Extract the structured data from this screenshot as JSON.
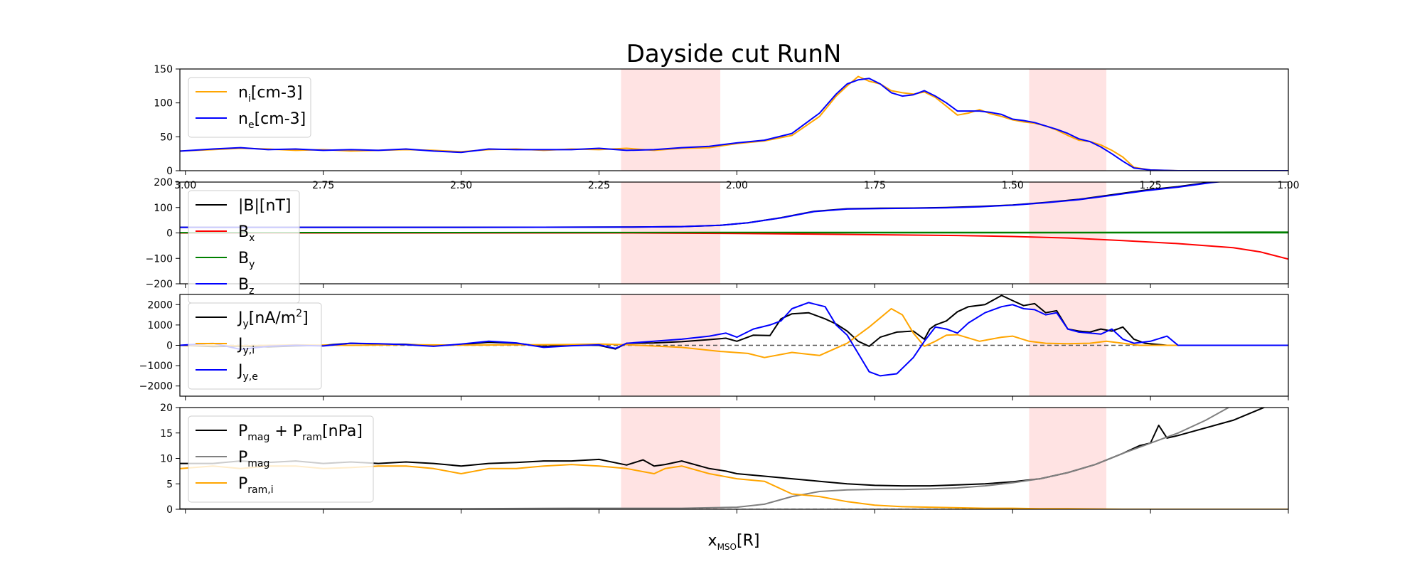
{
  "figure": {
    "title": "Dayside cut RunN",
    "xlabel": "x_MSO[R]"
  },
  "colors": {
    "orange": "#ffa500",
    "blue": "#0000ff",
    "black": "#000000",
    "red": "#ff0000",
    "green": "#008000",
    "gray": "#808080",
    "shade": "#ffc0c0"
  },
  "chart_data": [
    {
      "type": "line",
      "title": "Dayside cut RunN",
      "xlim": [
        3.01,
        1.0
      ],
      "ylim": [
        0,
        150
      ],
      "xticks": [
        "3.00",
        "2.75",
        "2.50",
        "2.25",
        "2.00",
        "1.75",
        "1.50",
        "1.25",
        "1.00"
      ],
      "yticks": [
        "0",
        "50",
        "100",
        "150"
      ],
      "shaded_regions": [
        [
          2.21,
          2.03
        ],
        [
          1.47,
          1.33
        ]
      ],
      "legend": {
        "position": "upper left",
        "entries": [
          "n_i[cm-3]",
          "n_e[cm-3]"
        ]
      },
      "series": [
        {
          "name": "n_i[cm-3]",
          "color": "orange",
          "x": [
            3.01,
            2.95,
            2.9,
            2.85,
            2.8,
            2.75,
            2.7,
            2.65,
            2.6,
            2.55,
            2.5,
            2.45,
            2.4,
            2.35,
            2.3,
            2.25,
            2.2,
            2.15,
            2.1,
            2.05,
            2.0,
            1.95,
            1.9,
            1.85,
            1.82,
            1.8,
            1.78,
            1.76,
            1.74,
            1.72,
            1.7,
            1.68,
            1.66,
            1.64,
            1.62,
            1.6,
            1.58,
            1.56,
            1.54,
            1.52,
            1.5,
            1.48,
            1.46,
            1.44,
            1.42,
            1.4,
            1.38,
            1.36,
            1.34,
            1.32,
            1.3,
            1.28,
            1.25,
            1.2,
            1.1,
            1.0
          ],
          "y": [
            29,
            31,
            33,
            32,
            30,
            31,
            29,
            30,
            31,
            30,
            28,
            31,
            32,
            30,
            32,
            31,
            33,
            30,
            33,
            34,
            40,
            44,
            52,
            80,
            110,
            125,
            139,
            132,
            128,
            118,
            115,
            113,
            116,
            108,
            95,
            82,
            85,
            90,
            84,
            80,
            75,
            72,
            70,
            66,
            60,
            52,
            45,
            43,
            38,
            30,
            20,
            5,
            1,
            0,
            0,
            0
          ]
        },
        {
          "name": "n_e[cm-3]",
          "color": "blue",
          "x": [
            3.01,
            2.95,
            2.9,
            2.85,
            2.8,
            2.75,
            2.7,
            2.65,
            2.6,
            2.55,
            2.5,
            2.45,
            2.4,
            2.35,
            2.3,
            2.25,
            2.2,
            2.15,
            2.1,
            2.05,
            2.0,
            1.95,
            1.9,
            1.85,
            1.82,
            1.8,
            1.78,
            1.76,
            1.74,
            1.72,
            1.7,
            1.68,
            1.66,
            1.64,
            1.62,
            1.6,
            1.58,
            1.56,
            1.54,
            1.52,
            1.5,
            1.48,
            1.46,
            1.44,
            1.42,
            1.4,
            1.38,
            1.36,
            1.34,
            1.32,
            1.3,
            1.28,
            1.25,
            1.2,
            1.1,
            1.0
          ],
          "y": [
            29,
            32,
            34,
            31,
            32,
            30,
            31,
            30,
            32,
            29,
            27,
            32,
            31,
            31,
            31,
            33,
            30,
            31,
            34,
            36,
            41,
            45,
            55,
            85,
            113,
            128,
            134,
            136,
            128,
            115,
            110,
            112,
            118,
            110,
            100,
            88,
            88,
            88,
            86,
            83,
            76,
            74,
            71,
            66,
            61,
            55,
            47,
            43,
            35,
            25,
            14,
            4,
            1,
            0,
            0,
            0
          ]
        }
      ]
    },
    {
      "type": "line",
      "xlim": [
        3.01,
        1.0
      ],
      "ylim": [
        -200,
        200
      ],
      "yticks": [
        "−200",
        "−100",
        "0",
        "100",
        "200"
      ],
      "hline": 0,
      "shaded_regions": [
        [
          2.21,
          2.03
        ],
        [
          1.47,
          1.33
        ]
      ],
      "legend": {
        "position": "upper left",
        "entries": [
          "|B|[nT]",
          "B_x",
          "B_y",
          "B_z"
        ]
      },
      "series": [
        {
          "name": "|B|[nT]",
          "color": "black",
          "x": [
            3.01,
            2.5,
            2.2,
            2.1,
            2.03,
            1.98,
            1.92,
            1.86,
            1.8,
            1.74,
            1.68,
            1.62,
            1.56,
            1.5,
            1.44,
            1.38,
            1.32,
            1.26,
            1.2,
            1.14,
            1.0
          ],
          "y": [
            22,
            22,
            23,
            25,
            30,
            40,
            60,
            85,
            95,
            97,
            98,
            100,
            104,
            110,
            120,
            132,
            150,
            168,
            182,
            200,
            230
          ]
        },
        {
          "name": "B_x",
          "color": "red",
          "x": [
            3.01,
            2.5,
            2.2,
            2.0,
            1.8,
            1.6,
            1.5,
            1.4,
            1.3,
            1.2,
            1.1,
            1.05,
            1.0
          ],
          "y": [
            0,
            0,
            0,
            -2,
            -6,
            -10,
            -14,
            -20,
            -30,
            -42,
            -58,
            -75,
            -103
          ]
        },
        {
          "name": "B_y",
          "color": "green",
          "x": [
            3.01,
            2.0,
            1.5,
            1.0
          ],
          "y": [
            1,
            2,
            2,
            3
          ]
        },
        {
          "name": "B_z",
          "color": "blue",
          "x": [
            3.01,
            2.5,
            2.2,
            2.1,
            2.03,
            1.98,
            1.92,
            1.86,
            1.8,
            1.74,
            1.68,
            1.62,
            1.56,
            1.5,
            1.44,
            1.38,
            1.32,
            1.26,
            1.2,
            1.14,
            1.0
          ],
          "y": [
            22,
            22,
            23,
            25,
            30,
            40,
            59,
            84,
            94,
            96,
            97,
            99,
            103,
            109,
            119,
            131,
            148,
            166,
            180,
            198,
            228
          ]
        }
      ]
    },
    {
      "type": "line",
      "xlim": [
        3.01,
        1.0
      ],
      "ylim": [
        -2500,
        2500
      ],
      "yticks": [
        "−2000",
        "−1000",
        "0",
        "1000",
        "2000"
      ],
      "hline": 0,
      "hline_style": "dashed",
      "shaded_regions": [
        [
          2.21,
          2.03
        ],
        [
          1.47,
          1.33
        ]
      ],
      "legend": {
        "position": "upper left",
        "entries": [
          "J_y[nA/m^2]",
          "J_y,i",
          "J_y,e"
        ]
      },
      "series": [
        {
          "name": "J_y[nA/m^2]",
          "color": "black",
          "x": [
            3.01,
            2.95,
            2.9,
            2.85,
            2.8,
            2.75,
            2.7,
            2.65,
            2.6,
            2.55,
            2.5,
            2.45,
            2.4,
            2.35,
            2.3,
            2.25,
            2.22,
            2.2,
            2.15,
            2.1,
            2.05,
            2.02,
            2.0,
            1.97,
            1.94,
            1.92,
            1.9,
            1.87,
            1.84,
            1.82,
            1.8,
            1.78,
            1.76,
            1.74,
            1.71,
            1.68,
            1.66,
            1.65,
            1.64,
            1.62,
            1.6,
            1.58,
            1.55,
            1.52,
            1.5,
            1.48,
            1.46,
            1.44,
            1.42,
            1.4,
            1.38,
            1.36,
            1.34,
            1.32,
            1.3,
            1.28,
            1.26,
            1.22,
            1.1,
            1.0
          ],
          "y": [
            0,
            -60,
            -40,
            -80,
            -30,
            0,
            100,
            60,
            50,
            -20,
            40,
            150,
            100,
            -60,
            20,
            0,
            -180,
            100,
            120,
            180,
            280,
            350,
            200,
            500,
            480,
            1300,
            1550,
            1600,
            1300,
            1050,
            700,
            200,
            -50,
            400,
            650,
            700,
            300,
            800,
            1000,
            1200,
            1650,
            1900,
            2000,
            2450,
            2200,
            1950,
            2050,
            1600,
            1700,
            800,
            700,
            650,
            800,
            700,
            900,
            300,
            100,
            0,
            0,
            0
          ]
        },
        {
          "name": "J_y,i",
          "color": "orange",
          "x": [
            3.01,
            2.9,
            2.8,
            2.7,
            2.6,
            2.5,
            2.4,
            2.3,
            2.25,
            2.2,
            2.1,
            2.03,
            1.98,
            1.95,
            1.9,
            1.85,
            1.8,
            1.78,
            1.76,
            1.72,
            1.7,
            1.68,
            1.66,
            1.64,
            1.62,
            1.6,
            1.56,
            1.52,
            1.5,
            1.47,
            1.44,
            1.4,
            1.36,
            1.33,
            1.3,
            1.27,
            1.25,
            1.0
          ],
          "y": [
            0,
            -20,
            20,
            0,
            30,
            10,
            20,
            40,
            60,
            30,
            -100,
            -300,
            -400,
            -600,
            -350,
            -500,
            100,
            500,
            900,
            1800,
            1500,
            600,
            -50,
            200,
            500,
            520,
            200,
            400,
            450,
            200,
            100,
            80,
            100,
            200,
            100,
            0,
            0,
            0
          ]
        },
        {
          "name": "J_y,e",
          "color": "blue",
          "x": [
            3.01,
            2.95,
            2.9,
            2.85,
            2.8,
            2.75,
            2.7,
            2.65,
            2.6,
            2.55,
            2.5,
            2.45,
            2.4,
            2.35,
            2.3,
            2.25,
            2.22,
            2.2,
            2.15,
            2.1,
            2.05,
            2.02,
            2.0,
            1.97,
            1.94,
            1.92,
            1.9,
            1.87,
            1.84,
            1.82,
            1.8,
            1.78,
            1.76,
            1.74,
            1.71,
            1.68,
            1.66,
            1.64,
            1.62,
            1.6,
            1.58,
            1.55,
            1.52,
            1.5,
            1.48,
            1.46,
            1.44,
            1.42,
            1.4,
            1.38,
            1.36,
            1.34,
            1.32,
            1.3,
            1.28,
            1.25,
            1.22,
            1.2,
            1.0
          ],
          "y": [
            0,
            100,
            -200,
            -50,
            0,
            -30,
            100,
            80,
            30,
            -50,
            60,
            200,
            120,
            -100,
            -20,
            20,
            -150,
            100,
            200,
            300,
            450,
            600,
            400,
            800,
            1000,
            1200,
            1800,
            2100,
            1900,
            1000,
            500,
            -400,
            -1300,
            -1500,
            -1400,
            -600,
            200,
            900,
            800,
            600,
            1100,
            1600,
            1900,
            2000,
            1800,
            1750,
            1500,
            1600,
            800,
            650,
            600,
            550,
            800,
            300,
            100,
            200,
            450,
            0,
            0
          ]
        }
      ]
    },
    {
      "type": "line",
      "xlim": [
        3.01,
        1.0
      ],
      "ylim": [
        0,
        20
      ],
      "yticks": [
        "0",
        "5",
        "10",
        "15",
        "20"
      ],
      "hline": 0,
      "hline_style": "dashed",
      "shaded_regions": [
        [
          2.21,
          2.03
        ],
        [
          1.47,
          1.33
        ]
      ],
      "legend": {
        "position": "upper left",
        "entries": [
          "P_mag + P_ram[nPa]",
          "P_mag",
          "P_ram,i"
        ]
      },
      "series": [
        {
          "name": "P_mag + P_ram[nPa]",
          "color": "black",
          "x": [
            3.01,
            2.95,
            2.9,
            2.85,
            2.8,
            2.75,
            2.7,
            2.65,
            2.6,
            2.55,
            2.5,
            2.45,
            2.4,
            2.35,
            2.3,
            2.25,
            2.2,
            2.17,
            2.15,
            2.13,
            2.1,
            2.05,
            2.02,
            2.0,
            1.95,
            1.9,
            1.85,
            1.8,
            1.75,
            1.7,
            1.65,
            1.6,
            1.55,
            1.5,
            1.45,
            1.4,
            1.35,
            1.3,
            1.27,
            1.25,
            1.235,
            1.22,
            1.2,
            1.1,
            1.0
          ],
          "y": [
            9,
            9,
            9.5,
            9.2,
            9.5,
            9,
            9.3,
            9,
            9.3,
            9,
            8.5,
            9,
            9.2,
            9.5,
            9.5,
            9.8,
            8.7,
            9.7,
            8.5,
            8.8,
            9.5,
            8,
            7.5,
            7,
            6.5,
            6,
            5.5,
            5,
            4.7,
            4.6,
            4.6,
            4.8,
            5,
            5.4,
            6,
            7.2,
            8.8,
            11,
            12.5,
            13,
            16.5,
            14,
            14.5,
            17.5,
            22
          ]
        },
        {
          "name": "P_mag",
          "color": "gray",
          "x": [
            3.01,
            2.9,
            2.8,
            2.7,
            2.6,
            2.5,
            2.3,
            2.1,
            2.05,
            2.0,
            1.95,
            1.9,
            1.85,
            1.8,
            1.75,
            1.7,
            1.65,
            1.6,
            1.55,
            1.5,
            1.45,
            1.4,
            1.35,
            1.3,
            1.25,
            1.2,
            1.15,
            1.1,
            1.0
          ],
          "y": [
            0.1,
            0.1,
            0.1,
            0.1,
            0.1,
            0.1,
            0.2,
            0.2,
            0.3,
            0.4,
            1,
            2.5,
            3.5,
            3.8,
            3.9,
            3.9,
            4,
            4.2,
            4.6,
            5.2,
            6,
            7.2,
            8.8,
            11,
            13,
            15,
            17.5,
            20.5,
            26
          ]
        },
        {
          "name": "P_ram,i",
          "color": "orange",
          "x": [
            3.01,
            2.95,
            2.9,
            2.85,
            2.8,
            2.75,
            2.7,
            2.65,
            2.6,
            2.55,
            2.5,
            2.45,
            2.4,
            2.35,
            2.3,
            2.25,
            2.2,
            2.15,
            2.13,
            2.1,
            2.05,
            2.0,
            1.95,
            1.9,
            1.85,
            1.8,
            1.75,
            1.7,
            1.65,
            1.6,
            1.55,
            1.5,
            1.45,
            1.4,
            1.3,
            1.2,
            1.0
          ],
          "y": [
            8,
            8.5,
            8,
            8.5,
            8.5,
            8,
            8.2,
            8.5,
            8.5,
            8,
            7,
            8,
            8,
            8.5,
            8.8,
            8.5,
            8,
            7,
            8,
            8.5,
            7,
            6,
            5.5,
            3,
            2.5,
            1.5,
            0.8,
            0.5,
            0.4,
            0.3,
            0.2,
            0.2,
            0.1,
            0.1,
            0,
            0,
            0
          ]
        }
      ]
    }
  ]
}
